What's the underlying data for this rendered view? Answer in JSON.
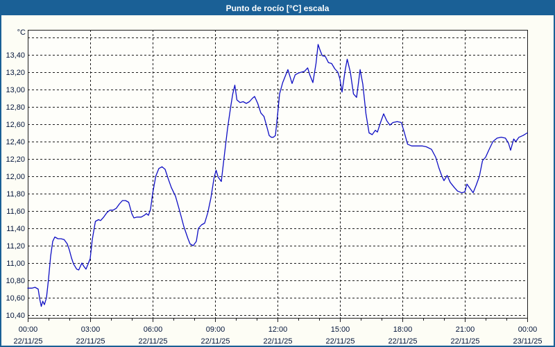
{
  "window": {
    "title": "Punto de rocío [°C] escala"
  },
  "colors": {
    "titlebar_bg": "#1a6096",
    "frame_border": "#1a6096",
    "page_bg": "#fdfdf5",
    "plot_bg": "#fefefa",
    "grid": "#1c1c1c",
    "axis_text": "#001238",
    "line": "#0d0dc4"
  },
  "chart_data": {
    "type": "line",
    "title": "Punto de rocío [°C] escala",
    "unit_label": "°C",
    "grid": "dashed",
    "legend_position": "none",
    "ylim": [
      10.4,
      13.6
    ],
    "ytick_step": 0.2,
    "y_gridline_max": 13.6,
    "y_ticks": [
      {
        "value": 13.4,
        "label": "13,40"
      },
      {
        "value": 13.2,
        "label": "13,20"
      },
      {
        "value": 13.0,
        "label": "13,00"
      },
      {
        "value": 12.8,
        "label": "12,80"
      },
      {
        "value": 12.6,
        "label": "12,60"
      },
      {
        "value": 12.4,
        "label": "12,40"
      },
      {
        "value": 12.2,
        "label": "12,20"
      },
      {
        "value": 12.0,
        "label": "12,00"
      },
      {
        "value": 11.8,
        "label": "11,80"
      },
      {
        "value": 11.6,
        "label": "11,60"
      },
      {
        "value": 11.4,
        "label": "11,40"
      },
      {
        "value": 11.2,
        "label": "11,20"
      },
      {
        "value": 11.0,
        "label": "11,00"
      },
      {
        "value": 10.8,
        "label": "10,80"
      },
      {
        "value": 10.6,
        "label": "10,60"
      },
      {
        "value": 10.4,
        "label": "10,40"
      }
    ],
    "xlim_hours": [
      0,
      24
    ],
    "x_minor_step_hours": 1,
    "x_ticks": [
      {
        "hour": 0,
        "time": "00:00",
        "date": "22/11/25"
      },
      {
        "hour": 3,
        "time": "03:00",
        "date": "22/11/25"
      },
      {
        "hour": 6,
        "time": "06:00",
        "date": "22/11/25"
      },
      {
        "hour": 9,
        "time": "09:00",
        "date": "22/11/25"
      },
      {
        "hour": 12,
        "time": "12:00",
        "date": "22/11/25"
      },
      {
        "hour": 15,
        "time": "15:00",
        "date": "22/11/25"
      },
      {
        "hour": 18,
        "time": "18:00",
        "date": "22/11/25"
      },
      {
        "hour": 21,
        "time": "21:00",
        "date": "22/11/25"
      },
      {
        "hour": 24,
        "time": "00:00",
        "date": "23/11/25"
      }
    ],
    "series": [
      {
        "name": "Punto de rocío",
        "color": "#0d0dc4",
        "points": [
          [
            0.0,
            10.71
          ],
          [
            0.2,
            10.71
          ],
          [
            0.35,
            10.72
          ],
          [
            0.5,
            10.7
          ],
          [
            0.58,
            10.58
          ],
          [
            0.65,
            10.5
          ],
          [
            0.72,
            10.56
          ],
          [
            0.8,
            10.52
          ],
          [
            0.9,
            10.6
          ],
          [
            1.0,
            10.82
          ],
          [
            1.1,
            11.08
          ],
          [
            1.2,
            11.25
          ],
          [
            1.3,
            11.3
          ],
          [
            1.45,
            11.28
          ],
          [
            1.6,
            11.28
          ],
          [
            1.75,
            11.27
          ],
          [
            1.9,
            11.22
          ],
          [
            2.0,
            11.15
          ],
          [
            2.1,
            11.06
          ],
          [
            2.2,
            10.99
          ],
          [
            2.35,
            10.93
          ],
          [
            2.45,
            10.92
          ],
          [
            2.6,
            11.0
          ],
          [
            2.7,
            10.96
          ],
          [
            2.8,
            10.93
          ],
          [
            2.9,
            10.99
          ],
          [
            3.0,
            11.05
          ],
          [
            3.1,
            11.27
          ],
          [
            3.25,
            11.48
          ],
          [
            3.4,
            11.5
          ],
          [
            3.5,
            11.49
          ],
          [
            3.65,
            11.53
          ],
          [
            3.8,
            11.58
          ],
          [
            3.95,
            11.61
          ],
          [
            4.1,
            11.61
          ],
          [
            4.25,
            11.63
          ],
          [
            4.4,
            11.68
          ],
          [
            4.55,
            11.72
          ],
          [
            4.7,
            11.72
          ],
          [
            4.85,
            11.7
          ],
          [
            5.0,
            11.57
          ],
          [
            5.1,
            11.52
          ],
          [
            5.25,
            11.53
          ],
          [
            5.45,
            11.53
          ],
          [
            5.6,
            11.55
          ],
          [
            5.7,
            11.57
          ],
          [
            5.8,
            11.55
          ],
          [
            5.9,
            11.62
          ],
          [
            6.0,
            11.8
          ],
          [
            6.15,
            12.0
          ],
          [
            6.3,
            12.09
          ],
          [
            6.45,
            12.11
          ],
          [
            6.6,
            12.08
          ],
          [
            6.75,
            11.97
          ],
          [
            6.9,
            11.87
          ],
          [
            7.1,
            11.77
          ],
          [
            7.3,
            11.6
          ],
          [
            7.5,
            11.42
          ],
          [
            7.7,
            11.28
          ],
          [
            7.8,
            11.22
          ],
          [
            7.95,
            11.2
          ],
          [
            8.1,
            11.25
          ],
          [
            8.2,
            11.4
          ],
          [
            8.35,
            11.44
          ],
          [
            8.5,
            11.46
          ],
          [
            8.65,
            11.58
          ],
          [
            8.8,
            11.75
          ],
          [
            8.95,
            11.98
          ],
          [
            9.05,
            12.07
          ],
          [
            9.15,
            11.99
          ],
          [
            9.3,
            11.94
          ],
          [
            9.45,
            12.25
          ],
          [
            9.6,
            12.55
          ],
          [
            9.75,
            12.8
          ],
          [
            9.85,
            12.95
          ],
          [
            9.95,
            13.05
          ],
          [
            10.05,
            12.88
          ],
          [
            10.2,
            12.85
          ],
          [
            10.35,
            12.86
          ],
          [
            10.5,
            12.84
          ],
          [
            10.65,
            12.86
          ],
          [
            10.8,
            12.9
          ],
          [
            10.9,
            12.92
          ],
          [
            11.05,
            12.84
          ],
          [
            11.2,
            12.73
          ],
          [
            11.35,
            12.69
          ],
          [
            11.5,
            12.56
          ],
          [
            11.6,
            12.47
          ],
          [
            11.7,
            12.45
          ],
          [
            11.8,
            12.45
          ],
          [
            11.9,
            12.47
          ],
          [
            12.0,
            12.7
          ],
          [
            12.1,
            12.95
          ],
          [
            12.25,
            13.08
          ],
          [
            12.4,
            13.17
          ],
          [
            12.5,
            13.23
          ],
          [
            12.6,
            13.15
          ],
          [
            12.7,
            13.07
          ],
          [
            12.85,
            13.17
          ],
          [
            13.0,
            13.19
          ],
          [
            13.15,
            13.2
          ],
          [
            13.3,
            13.21
          ],
          [
            13.45,
            13.25
          ],
          [
            13.55,
            13.17
          ],
          [
            13.7,
            13.08
          ],
          [
            13.85,
            13.3
          ],
          [
            13.95,
            13.52
          ],
          [
            14.05,
            13.45
          ],
          [
            14.15,
            13.39
          ],
          [
            14.3,
            13.38
          ],
          [
            14.45,
            13.31
          ],
          [
            14.6,
            13.3
          ],
          [
            14.75,
            13.24
          ],
          [
            14.9,
            13.2
          ],
          [
            15.0,
            13.12
          ],
          [
            15.1,
            12.97
          ],
          [
            15.25,
            13.22
          ],
          [
            15.35,
            13.35
          ],
          [
            15.5,
            13.2
          ],
          [
            15.65,
            12.95
          ],
          [
            15.8,
            12.91
          ],
          [
            15.97,
            13.23
          ],
          [
            16.1,
            13.06
          ],
          [
            16.25,
            12.72
          ],
          [
            16.4,
            12.5
          ],
          [
            16.55,
            12.48
          ],
          [
            16.7,
            12.53
          ],
          [
            16.8,
            12.51
          ],
          [
            16.95,
            12.62
          ],
          [
            17.1,
            12.72
          ],
          [
            17.25,
            12.64
          ],
          [
            17.4,
            12.59
          ],
          [
            17.55,
            12.62
          ],
          [
            17.75,
            12.63
          ],
          [
            17.95,
            12.62
          ],
          [
            18.1,
            12.5
          ],
          [
            18.25,
            12.37
          ],
          [
            18.45,
            12.35
          ],
          [
            18.7,
            12.35
          ],
          [
            18.95,
            12.35
          ],
          [
            19.15,
            12.34
          ],
          [
            19.4,
            12.31
          ],
          [
            19.6,
            12.22
          ],
          [
            19.75,
            12.1
          ],
          [
            19.9,
            12.0
          ],
          [
            20.0,
            11.95
          ],
          [
            20.15,
            12.01
          ],
          [
            20.3,
            11.93
          ],
          [
            20.5,
            11.87
          ],
          [
            20.65,
            11.83
          ],
          [
            20.85,
            11.81
          ],
          [
            21.0,
            11.82
          ],
          [
            21.1,
            11.91
          ],
          [
            21.25,
            11.86
          ],
          [
            21.4,
            11.81
          ],
          [
            21.55,
            11.9
          ],
          [
            21.7,
            12.0
          ],
          [
            21.85,
            12.18
          ],
          [
            22.0,
            12.22
          ],
          [
            22.15,
            12.3
          ],
          [
            22.35,
            12.4
          ],
          [
            22.55,
            12.44
          ],
          [
            22.75,
            12.45
          ],
          [
            22.95,
            12.44
          ],
          [
            23.1,
            12.38
          ],
          [
            23.2,
            12.3
          ],
          [
            23.35,
            12.43
          ],
          [
            23.45,
            12.4
          ],
          [
            23.6,
            12.45
          ],
          [
            23.8,
            12.47
          ],
          [
            24.0,
            12.5
          ]
        ]
      }
    ]
  }
}
